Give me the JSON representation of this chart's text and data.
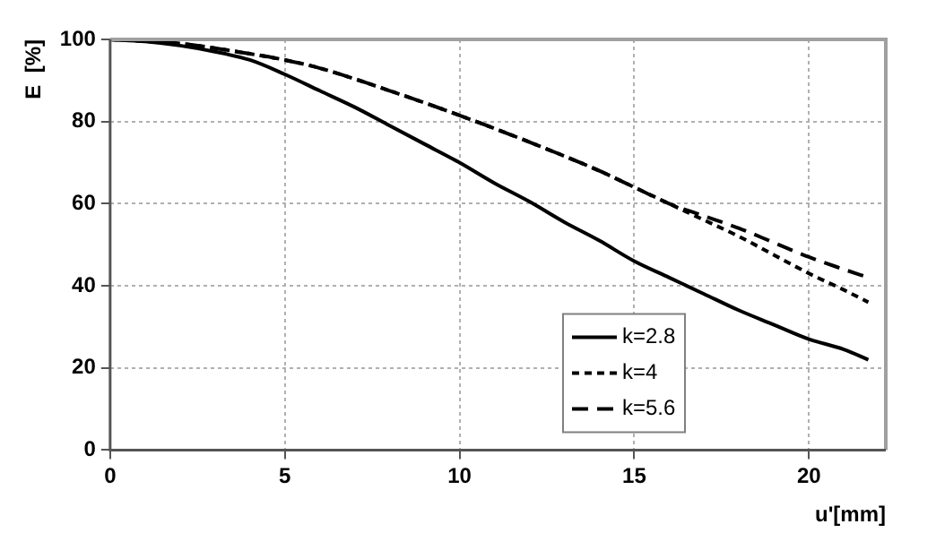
{
  "chart_data": {
    "type": "line",
    "xlabel": "u'[mm]",
    "ylabel": "E  [%]",
    "xlim": [
      0,
      22.2
    ],
    "xticks": [
      0,
      5,
      10,
      15,
      20
    ],
    "ylim": [
      0,
      100
    ],
    "yticks": [
      0,
      20,
      40,
      60,
      80,
      100
    ],
    "grid": true,
    "legend": "bottom right",
    "marker": "none",
    "series": [
      {
        "name": "k=2.8",
        "color": "#000000",
        "line_style": "solid",
        "x": [
          0,
          1,
          2,
          3,
          4,
          5,
          6,
          7,
          8,
          9,
          10,
          11,
          12,
          13,
          14,
          15,
          16,
          17,
          18,
          19,
          20,
          21,
          21.7
        ],
        "values": [
          100,
          99.5,
          98.5,
          97,
          95,
          91.5,
          87.5,
          83.5,
          79,
          74.5,
          70,
          65,
          60.5,
          55.5,
          51,
          46,
          42,
          38,
          34,
          30.5,
          27,
          24.5,
          22
        ]
      },
      {
        "name": "k=4",
        "color": "#000000",
        "line_style": "dotted",
        "x": [
          0,
          2,
          4,
          5,
          6,
          8,
          10,
          12,
          14,
          15,
          16,
          17,
          18,
          19,
          20,
          21,
          21.7
        ],
        "values": [
          100,
          99,
          96.5,
          95,
          93,
          87.5,
          81.5,
          75,
          68,
          64,
          60,
          56,
          52,
          47.5,
          43,
          39,
          36
        ]
      },
      {
        "name": "k=5.6",
        "color": "#000000",
        "line_style": "dashed",
        "x": [
          0,
          2,
          4,
          5,
          6,
          8,
          10,
          12,
          14,
          15,
          16,
          17,
          18,
          19,
          20,
          21,
          21.7
        ],
        "values": [
          100,
          99,
          96.5,
          95,
          93,
          87.5,
          81.5,
          75,
          68,
          64,
          60,
          57,
          54,
          50.5,
          47,
          44,
          42
        ]
      }
    ]
  }
}
